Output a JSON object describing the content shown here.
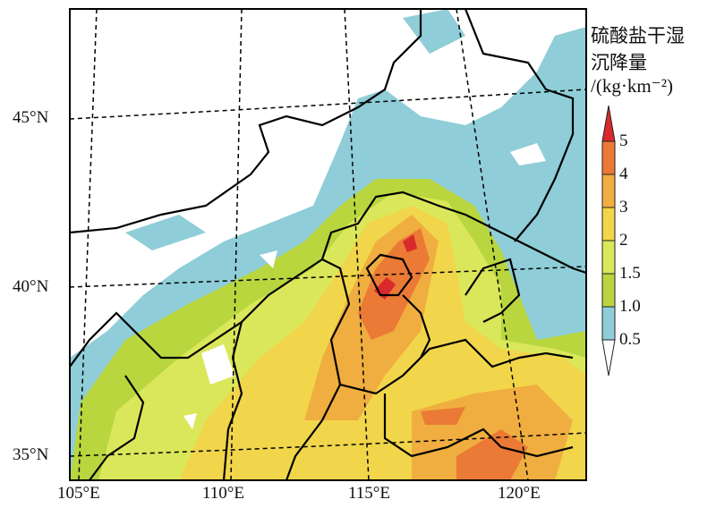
{
  "colorbar": {
    "title_line1": "硫酸盐干湿",
    "title_line2": "沉降量",
    "unit": "/(kg·km⁻²)",
    "ticks": [
      "5",
      "4",
      "3",
      "2",
      "1.5",
      "1.0",
      "0.5"
    ],
    "bins": [
      {
        "range": "<0.5",
        "color": "#ffffff"
      },
      {
        "range": "0.5-1.0",
        "color": "#8fcdd8"
      },
      {
        "range": "1.0-1.5",
        "color": "#b9d63f"
      },
      {
        "range": "1.5-2",
        "color": "#dbe75a"
      },
      {
        "range": "2-3",
        "color": "#f1d64b"
      },
      {
        "range": "3-4",
        "color": "#f0ae40"
      },
      {
        "range": "4-5",
        "color": "#ea7a35"
      },
      {
        "range": ">5",
        "color": "#d9292b"
      }
    ]
  },
  "axes": {
    "lat_labels": [
      "45°N",
      "40°N",
      "35°N"
    ],
    "lon_labels": [
      "105°E",
      "110°E",
      "115°E",
      "120°E"
    ]
  }
}
